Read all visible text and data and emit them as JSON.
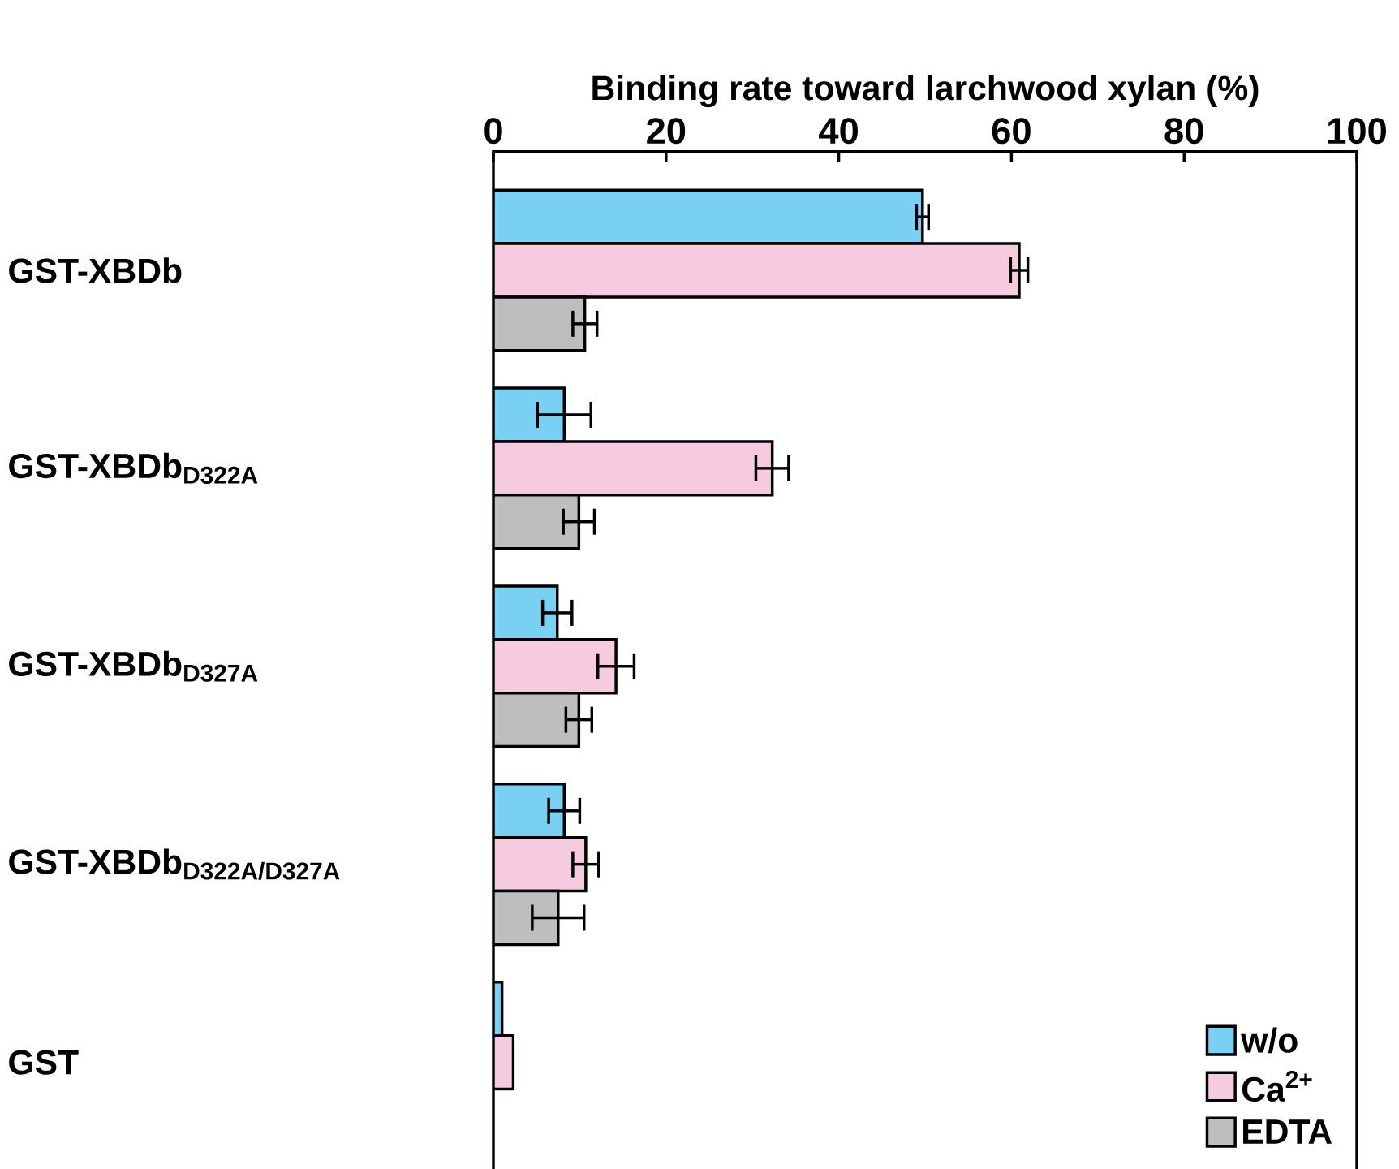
{
  "chart_data": {
    "type": "bar",
    "orientation": "horizontal",
    "xlabel": "Binding rate toward larchwood xylan (%)",
    "categories": [
      "\\text{GST-XBDb}",
      "\\text{GST-XBDb}_{\\text{D322A}}",
      "\\text{GST-XBDb}_{\\text{D327A}}",
      "\\text{GST-XBDb}_{\\text{D322A/D327A}}",
      "\\text{GST}"
    ],
    "xlim": [
      0,
      100
    ],
    "xticks": [
      0,
      20,
      40,
      60,
      80,
      100
    ],
    "legend": "bottom right",
    "series": [
      {
        "name": "w/o",
        "color": "#7ad0f3",
        "values": [
          49.7,
          8.2,
          7.4,
          8.2,
          1.0
        ],
        "errors": [
          0.7,
          3.1,
          1.7,
          1.8,
          null
        ]
      },
      {
        "name": "Ca$^{2+}$",
        "color": "#f7cbdf",
        "values": [
          60.9,
          32.3,
          14.2,
          10.7,
          2.3
        ],
        "errors": [
          1.0,
          1.9,
          2.1,
          1.5,
          null
        ]
      },
      {
        "name": "EDTA",
        "color": "#bcbec0",
        "values": [
          10.6,
          9.9,
          9.9,
          7.5,
          null
        ],
        "errors": [
          1.4,
          1.8,
          1.5,
          3.0,
          null
        ]
      }
    ]
  }
}
